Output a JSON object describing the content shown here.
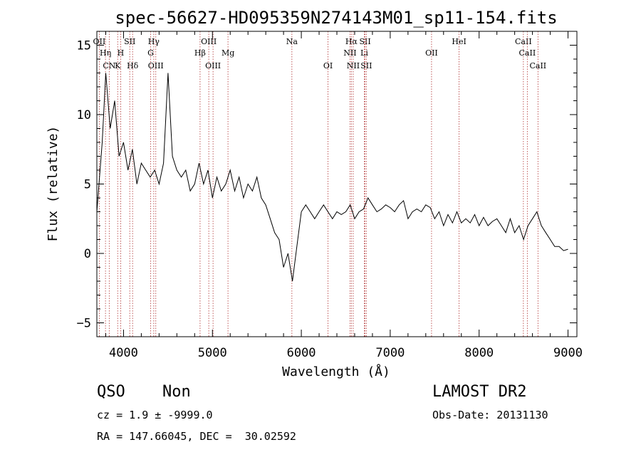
{
  "chart_data": {
    "type": "line",
    "title": "spec-56627-HD095359N274143M01_sp11-154.fits",
    "xlabel": "Wavelength (Å)",
    "ylabel": "Flux (relative)",
    "xlim": [
      3700,
      9100
    ],
    "ylim": [
      -6,
      16
    ],
    "xticks": [
      4000,
      5000,
      6000,
      7000,
      8000,
      9000
    ],
    "yticks": [
      -5,
      0,
      5,
      10,
      15
    ],
    "grid": false,
    "series": [
      {
        "name": "spectrum",
        "x": [
          3700,
          3760,
          3800,
          3850,
          3900,
          3950,
          4000,
          4050,
          4100,
          4150,
          4200,
          4250,
          4300,
          4350,
          4400,
          4450,
          4500,
          4550,
          4600,
          4650,
          4700,
          4750,
          4800,
          4850,
          4900,
          4950,
          5000,
          5050,
          5100,
          5150,
          5200,
          5250,
          5300,
          5350,
          5400,
          5450,
          5500,
          5550,
          5600,
          5650,
          5700,
          5750,
          5800,
          5850,
          5900,
          5950,
          6000,
          6050,
          6100,
          6150,
          6200,
          6250,
          6300,
          6350,
          6400,
          6450,
          6500,
          6550,
          6600,
          6650,
          6700,
          6750,
          6800,
          6850,
          6900,
          6950,
          7000,
          7050,
          7100,
          7150,
          7200,
          7250,
          7300,
          7350,
          7400,
          7450,
          7500,
          7550,
          7600,
          7650,
          7700,
          7750,
          7800,
          7850,
          7900,
          7950,
          8000,
          8050,
          8100,
          8150,
          8200,
          8250,
          8300,
          8350,
          8400,
          8450,
          8500,
          8550,
          8600,
          8650,
          8700,
          8750,
          8800,
          8850,
          8900,
          8950,
          9000
        ],
        "values": [
          3,
          8,
          13,
          9,
          11,
          7,
          8,
          6,
          7.5,
          5,
          6.5,
          6,
          5.5,
          6,
          5,
          6.5,
          13,
          7,
          6,
          5.5,
          6,
          4.5,
          5,
          6.5,
          5,
          6,
          4,
          5.5,
          4.5,
          5,
          6,
          4.5,
          5.5,
          4,
          5,
          4.5,
          5.5,
          4,
          3.5,
          2.5,
          1.5,
          1,
          -1,
          0,
          -2,
          0.5,
          3,
          3.5,
          3,
          2.5,
          3,
          3.5,
          3,
          2.5,
          3,
          2.8,
          3,
          3.5,
          2.5,
          3,
          3.2,
          4,
          3.5,
          3,
          3.2,
          3.5,
          3.3,
          3,
          3.5,
          3.8,
          2.5,
          3,
          3.2,
          3,
          3.5,
          3.3,
          2.5,
          3,
          2,
          2.8,
          2.2,
          3,
          2.2,
          2.5,
          2.2,
          2.8,
          2,
          2.6,
          2,
          2.3,
          2.5,
          2,
          1.5,
          2.5,
          1.5,
          2,
          1,
          2,
          2.5,
          3,
          2,
          1.5,
          1,
          0.5,
          0.5,
          0.2,
          0.3
        ]
      }
    ],
    "lines": [
      {
        "label": "OII",
        "x": 3727,
        "row": 1
      },
      {
        "label": "Hη",
        "x": 3797,
        "row": 2
      },
      {
        "label": "CN",
        "x": 3839,
        "row": 3
      },
      {
        "label": "K",
        "x": 3934,
        "row": 3
      },
      {
        "label": "H",
        "x": 3968,
        "row": 2
      },
      {
        "label": "SII",
        "x": 4070,
        "row": 1
      },
      {
        "label": "Hδ",
        "x": 4102,
        "row": 3
      },
      {
        "label": "Hγ",
        "x": 4340,
        "row": 1
      },
      {
        "label": "G",
        "x": 4305,
        "row": 2
      },
      {
        "label": "OIII",
        "x": 4363,
        "row": 3
      },
      {
        "label": "Hβ",
        "x": 4861,
        "row": 2
      },
      {
        "label": "OIII",
        "x": 4959,
        "row": 1
      },
      {
        "label": "OIII",
        "x": 5007,
        "row": 3
      },
      {
        "label": "Mg",
        "x": 5175,
        "row": 2
      },
      {
        "label": "Na",
        "x": 5894,
        "row": 1
      },
      {
        "label": "OI",
        "x": 6300,
        "row": 3
      },
      {
        "label": "Hα",
        "x": 6563,
        "row": 1
      },
      {
        "label": "NII",
        "x": 6548,
        "row": 2
      },
      {
        "label": "NII",
        "x": 6584,
        "row": 3
      },
      {
        "label": "SII",
        "x": 6717,
        "row": 1
      },
      {
        "label": "Li",
        "x": 6708,
        "row": 2
      },
      {
        "label": "SII",
        "x": 6731,
        "row": 3
      },
      {
        "label": "OII",
        "x": 7465,
        "row": 2
      },
      {
        "label": "HeI",
        "x": 7775,
        "row": 1
      },
      {
        "label": "CaII",
        "x": 8498,
        "row": 1
      },
      {
        "label": "CaII",
        "x": 8542,
        "row": 2
      },
      {
        "label": "CaII",
        "x": 8662,
        "row": 3
      }
    ]
  },
  "footer": {
    "class_label": "QSO",
    "subclass_label": "Non",
    "cz_text": "cz = 1.9 ± -9999.0",
    "radec_text": "RA = 147.66045, DEC =  30.02592",
    "survey": "LAMOST DR2",
    "obs_date": "Obs-Date: 20131130"
  },
  "colors": {
    "line_marker": "#b03030",
    "axis": "#000000"
  }
}
